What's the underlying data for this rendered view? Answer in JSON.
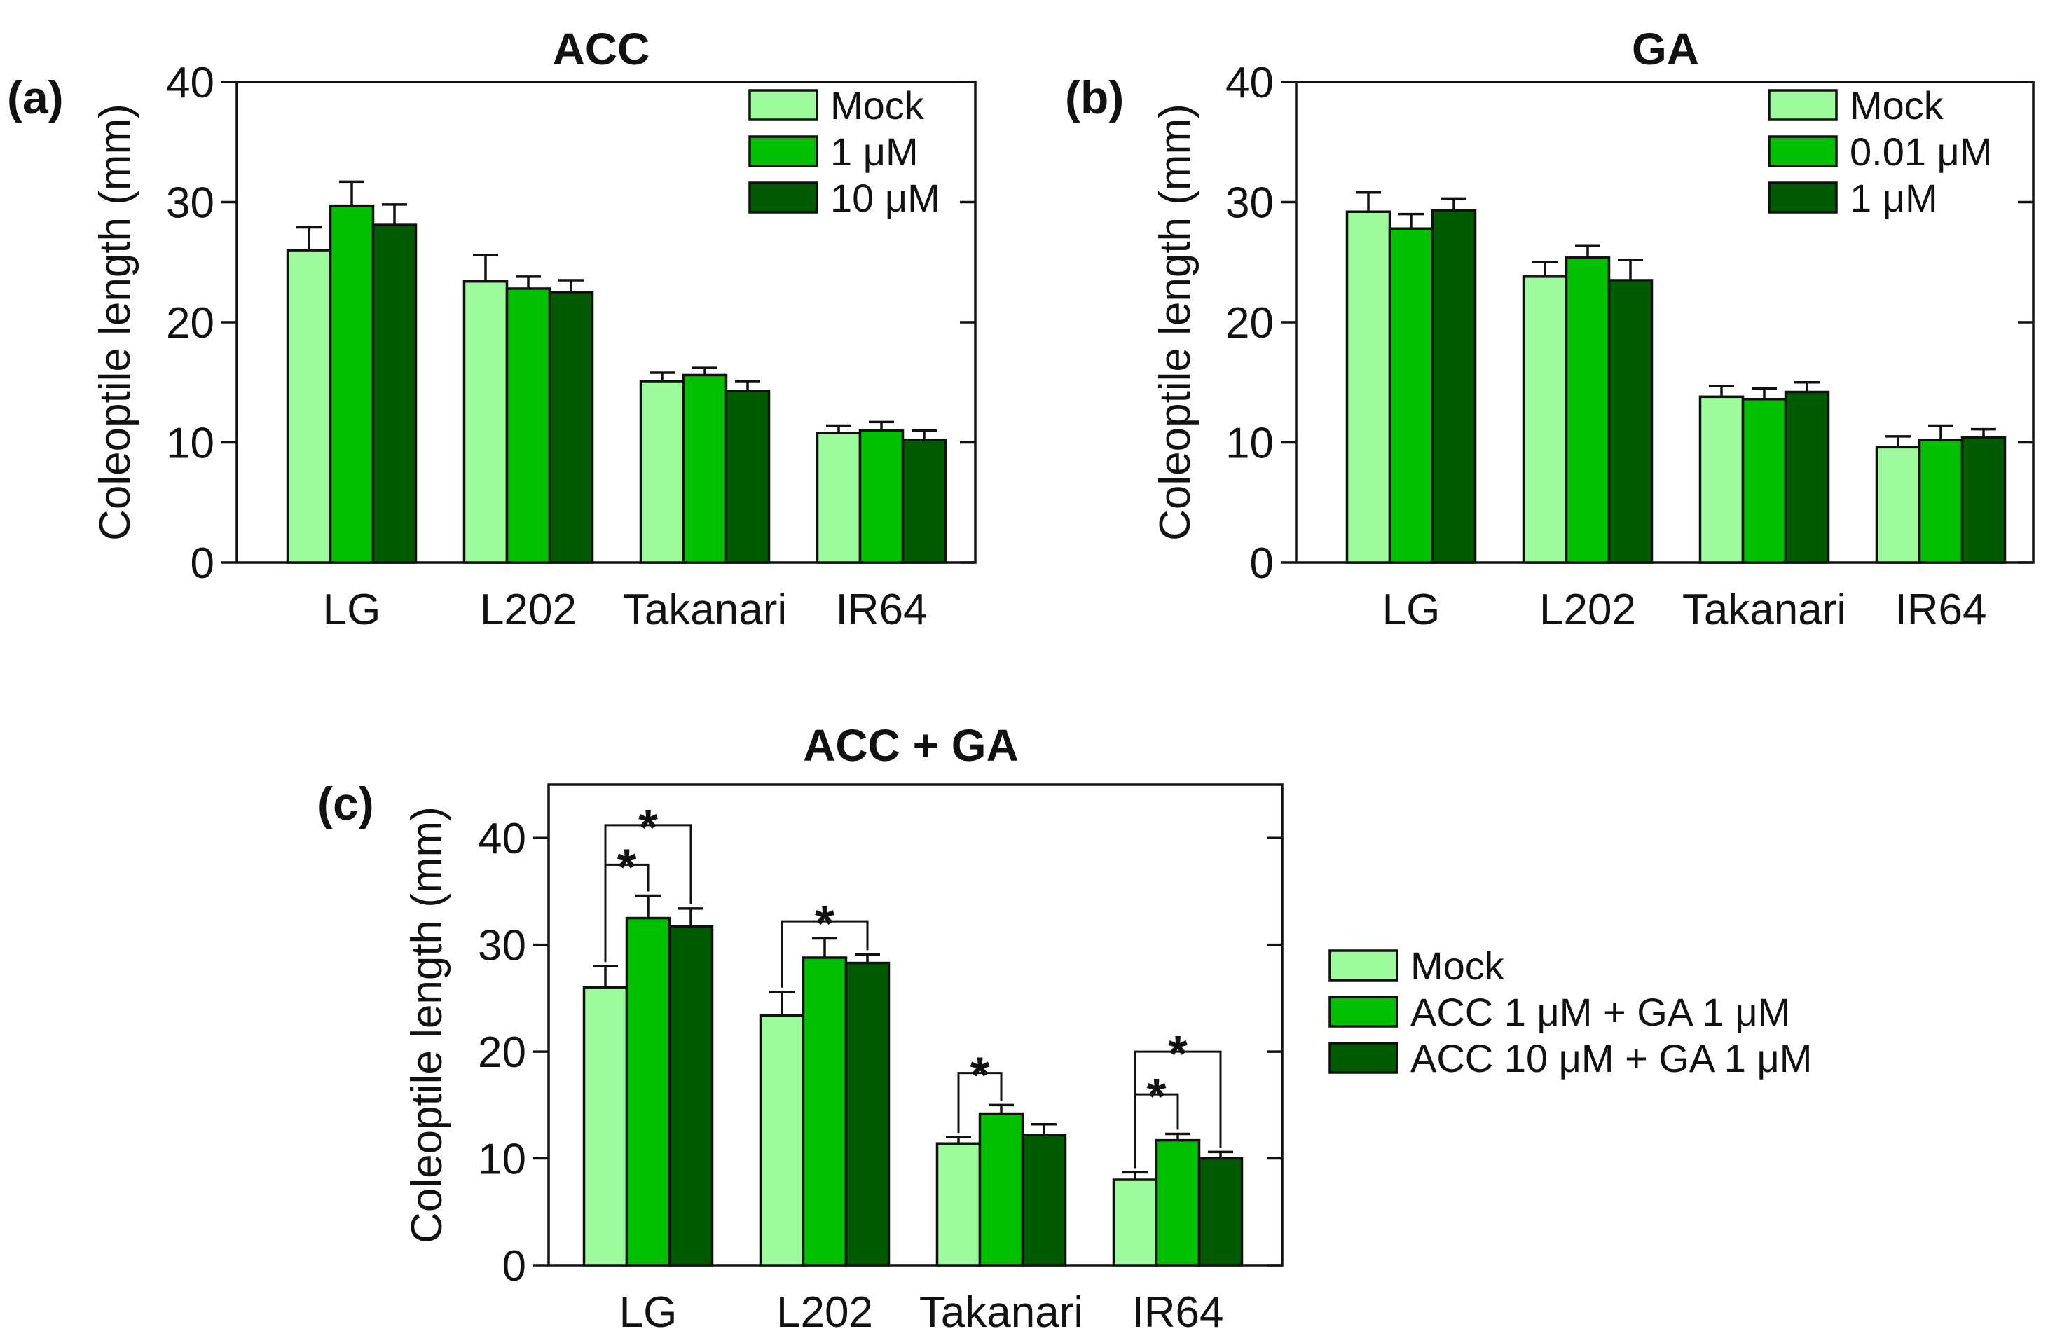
{
  "colors": {
    "mock": "#9dfb9d",
    "mid": "#00c000",
    "high": "#005a00",
    "axis": "#111111"
  },
  "chart_data": [
    {
      "type": "bar",
      "panel": "(a)",
      "title": "ACC",
      "xlabel": "",
      "ylabel": "Coleoptile length (mm)",
      "ylim": [
        0,
        40
      ],
      "yticks": [
        0,
        10,
        20,
        30,
        40
      ],
      "categories": [
        "LG",
        "L202",
        "Takanari",
        "IR64"
      ],
      "legend_position": "top-right",
      "series": [
        {
          "name": "Mock",
          "color": "mock",
          "values": [
            26.0,
            23.4,
            15.1,
            10.8
          ],
          "errors": [
            1.9,
            2.2,
            0.7,
            0.6
          ]
        },
        {
          "name": "1 μM",
          "color": "mid",
          "values": [
            29.7,
            22.8,
            15.6,
            11.0
          ],
          "errors": [
            2.0,
            1.0,
            0.6,
            0.7
          ]
        },
        {
          "name": "10 μM",
          "color": "high",
          "values": [
            28.1,
            22.5,
            14.3,
            10.2
          ],
          "errors": [
            1.7,
            1.0,
            0.8,
            0.8
          ]
        }
      ],
      "significance": []
    },
    {
      "type": "bar",
      "panel": "(b)",
      "title": "GA",
      "xlabel": "",
      "ylabel": "Coleoptile length (mm)",
      "ylim": [
        0,
        40
      ],
      "yticks": [
        0,
        10,
        20,
        30,
        40
      ],
      "categories": [
        "LG",
        "L202",
        "Takanari",
        "IR64"
      ],
      "legend_position": "top-right",
      "series": [
        {
          "name": "Mock",
          "color": "mock",
          "values": [
            29.2,
            23.8,
            13.8,
            9.6
          ],
          "errors": [
            1.6,
            1.2,
            0.9,
            0.9
          ]
        },
        {
          "name": "0.01 μM",
          "color": "mid",
          "values": [
            27.8,
            25.4,
            13.6,
            10.2
          ],
          "errors": [
            1.2,
            1.0,
            0.9,
            1.2
          ]
        },
        {
          "name": "1 μM",
          "color": "high",
          "values": [
            29.3,
            23.5,
            14.2,
            10.4
          ],
          "errors": [
            1.0,
            1.7,
            0.8,
            0.7
          ]
        }
      ],
      "significance": []
    },
    {
      "type": "bar",
      "panel": "(c)",
      "title": "ACC + GA",
      "xlabel": "",
      "ylabel": "Coleoptile length (mm)",
      "ylim": [
        0,
        45
      ],
      "yticks": [
        0,
        10,
        20,
        30,
        40
      ],
      "categories": [
        "LG",
        "L202",
        "Takanari",
        "IR64"
      ],
      "legend_position": "right",
      "series": [
        {
          "name": "Mock",
          "color": "mock",
          "values": [
            26.0,
            23.4,
            11.4,
            8.0
          ],
          "errors": [
            2.0,
            2.2,
            0.6,
            0.7
          ]
        },
        {
          "name": "ACC 1 μM + GA 1 μM",
          "color": "mid",
          "values": [
            32.5,
            28.8,
            14.2,
            11.7
          ],
          "errors": [
            2.1,
            1.8,
            0.8,
            0.6
          ]
        },
        {
          "name": "ACC 10 μM + GA 1 μM",
          "color": "high",
          "values": [
            31.7,
            28.3,
            12.2,
            10.0
          ],
          "errors": [
            1.7,
            0.8,
            1.0,
            0.6
          ]
        }
      ],
      "significance": [
        {
          "category": 0,
          "from": 0,
          "to": 1,
          "level": 37.5,
          "label": "*"
        },
        {
          "category": 0,
          "from": 0,
          "to": 2,
          "level": 41.2,
          "label": "*"
        },
        {
          "category": 1,
          "from": 0,
          "to": 2,
          "level": 32.2,
          "label": "*"
        },
        {
          "category": 2,
          "from": 0,
          "to": 1,
          "level": 18.0,
          "label": "*"
        },
        {
          "category": 3,
          "from": 0,
          "to": 1,
          "level": 16.0,
          "label": "*"
        },
        {
          "category": 3,
          "from": 0,
          "to": 2,
          "level": 20.0,
          "label": "*"
        }
      ]
    }
  ]
}
